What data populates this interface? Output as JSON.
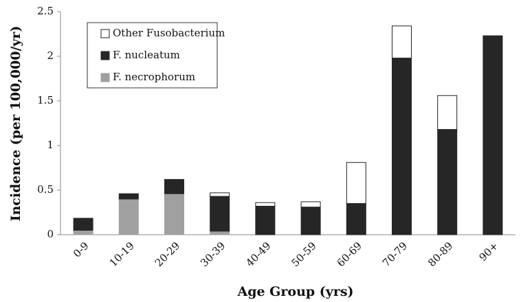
{
  "chart_data": {
    "type": "stacked_bar",
    "xlabel": "Age Group (yrs)",
    "ylabel": "Incidence (per 100,000/yr)",
    "categories": [
      "0-9",
      "10-19",
      "20-29",
      "30-39",
      "40-49",
      "50-59",
      "60-69",
      "70-79",
      "80-89",
      "90+"
    ],
    "series": [
      {
        "name": "F. necrophorum",
        "color": "#a0a0a0",
        "values": [
          0.05,
          0.4,
          0.46,
          0.04,
          0,
          0,
          0,
          0,
          0,
          0
        ]
      },
      {
        "name": "F. nucleatum",
        "color": "#262626",
        "values": [
          0.135,
          0.06,
          0.16,
          0.39,
          0.32,
          0.31,
          0.35,
          1.98,
          1.18,
          2.23
        ]
      },
      {
        "name": "Other Fusobacterium",
        "color": "#ffffff",
        "values": [
          0,
          0,
          0,
          0.04,
          0.04,
          0.06,
          0.46,
          0.36,
          0.38,
          0
        ]
      }
    ],
    "ylim": [
      0,
      2.5
    ],
    "yticks": [
      0,
      0.5,
      1,
      1.5,
      2,
      2.5
    ],
    "legend": "upper left",
    "grid": false
  }
}
